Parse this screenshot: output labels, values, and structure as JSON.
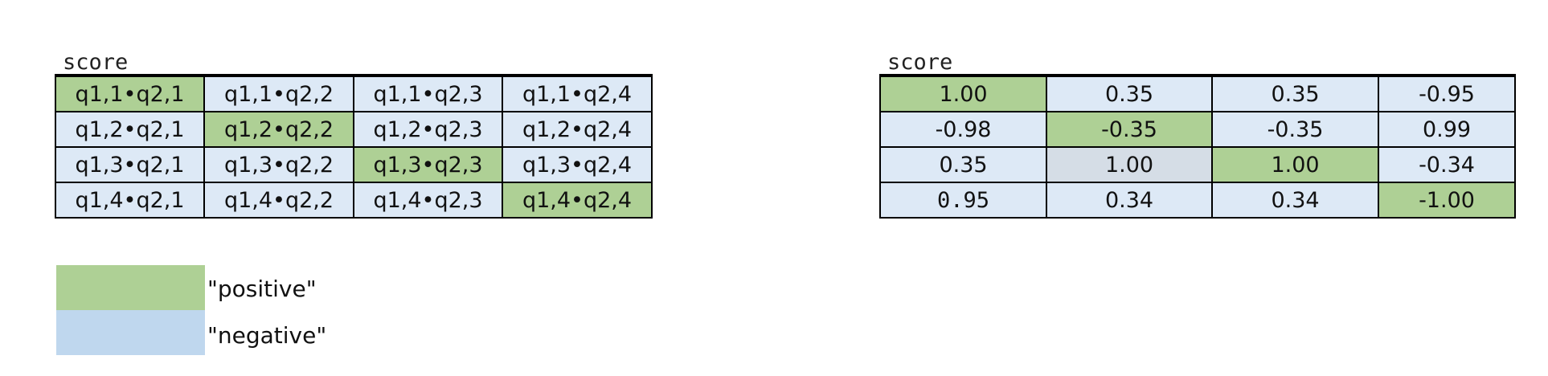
{
  "left_panel": {
    "caption": "score",
    "rows": [
      [
        "q1,1•q2,1",
        "q1,1•q2,2",
        "q1,1•q2,3",
        "q1,1•q2,4"
      ],
      [
        "q1,2•q2,1",
        "q1,2•q2,2",
        "q1,2•q2,3",
        "q1,2•q2,4"
      ],
      [
        "q1,3•q2,1",
        "q1,3•q2,2",
        "q1,3•q2,3",
        "q1,3•q2,4"
      ],
      [
        "q1,4•q2,1",
        "q1,4•q2,2",
        "q1,4•q2,3",
        "q1,4•q2,4"
      ]
    ],
    "fills": [
      [
        "positive",
        "negative",
        "negative",
        "negative"
      ],
      [
        "negative",
        "positive",
        "negative",
        "negative"
      ],
      [
        "negative",
        "negative",
        "positive",
        "negative"
      ],
      [
        "negative",
        "negative",
        "negative",
        "positive"
      ]
    ]
  },
  "right_panel": {
    "caption": "score",
    "rows": [
      [
        "1.00",
        "0.35",
        "0.35",
        "-0.95"
      ],
      [
        "-0.98",
        "-0.35",
        "-0.35",
        "0.99"
      ],
      [
        "0.35",
        "1.00",
        "1.00",
        "-0.34"
      ],
      [
        "0.95",
        "0.34",
        "0.34",
        "-1.00"
      ]
    ],
    "fills": [
      [
        "positive",
        "negative",
        "negative",
        "negative"
      ],
      [
        "negative",
        "positive",
        "negative",
        "negative"
      ],
      [
        "negative",
        "neutral",
        "positive",
        "negative"
      ],
      [
        "negative",
        "negative",
        "negative",
        "positive"
      ]
    ]
  },
  "legend": {
    "positive_label": "\"positive\"",
    "negative_label": "\"negative\""
  },
  "colors": {
    "positive": "#aed095",
    "negative": "#dde9f6",
    "neutral": "#d5dde6",
    "legend_negative": "#bfd7ee"
  }
}
